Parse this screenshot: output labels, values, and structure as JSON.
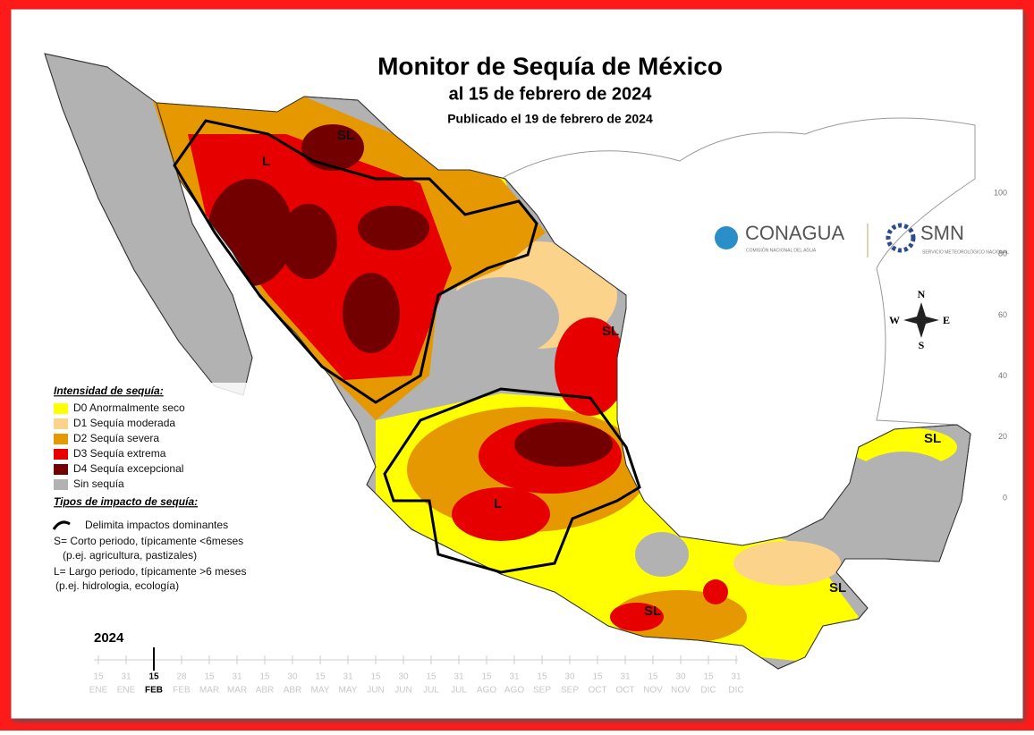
{
  "header": {
    "title": "Monitor de Sequía de México",
    "subtitle": "al 15 de febrero de 2024",
    "published": "Publicado el 19 de febrero de 2024"
  },
  "legend": {
    "title": "Intensidad de sequía:",
    "items": [
      {
        "label": "D0 Anormalmente seco",
        "color": "#ffff00"
      },
      {
        "label": "D1 Sequía moderada",
        "color": "#fcd38b"
      },
      {
        "label": "D2 Sequía severa",
        "color": "#e69800"
      },
      {
        "label": "D3 Sequía extrema",
        "color": "#e60000"
      },
      {
        "label": "D4 Sequía excepcional",
        "color": "#730000"
      },
      {
        "label": "Sin sequía",
        "color": "#b2b2b2"
      }
    ]
  },
  "impacts": {
    "title": "Tipos de impacto de sequía:",
    "items": [
      "Delimita impactos dominantes",
      "S= Corto periodo, típicamente <6meses",
      "(p.ej. agricultura, pastizales)",
      "L= Largo periodo, típicamente >6 meses",
      "(p.ej. hidrologia, ecología)"
    ]
  },
  "map_labels": [
    "SL",
    "L",
    "SL",
    "SL",
    "L",
    "SL",
    "SL"
  ],
  "logos": {
    "conagua": "CONAGUA",
    "conagua_sub": "COMISIÓN NACIONAL DEL AGUA",
    "smn": "SMN",
    "smn_sub": "SERVICIO METEOROLÓGICO NACIONAL"
  },
  "compass": {
    "n": "N",
    "s": "S",
    "e": "E",
    "w": "W"
  },
  "side_axis": [
    100,
    80,
    60,
    40,
    20,
    0
  ],
  "timeline": {
    "year": "2024",
    "current": 2,
    "ticks": [
      {
        "day": 15,
        "month": "ENE"
      },
      {
        "day": 31,
        "month": "ENE"
      },
      {
        "day": 15,
        "month": "FEB"
      },
      {
        "day": 28,
        "month": "FEB"
      },
      {
        "day": 15,
        "month": "MAR"
      },
      {
        "day": 31,
        "month": "MAR"
      },
      {
        "day": 15,
        "month": "ABR"
      },
      {
        "day": 30,
        "month": "ABR"
      },
      {
        "day": 15,
        "month": "MAY"
      },
      {
        "day": 31,
        "month": "MAY"
      },
      {
        "day": 15,
        "month": "JUN"
      },
      {
        "day": 30,
        "month": "JUN"
      },
      {
        "day": 15,
        "month": "JUL"
      },
      {
        "day": 31,
        "month": "JUL"
      },
      {
        "day": 15,
        "month": "AGO"
      },
      {
        "day": 31,
        "month": "AGO"
      },
      {
        "day": 15,
        "month": "SEP"
      },
      {
        "day": 30,
        "month": "SEP"
      },
      {
        "day": 15,
        "month": "OCT"
      },
      {
        "day": 31,
        "month": "OCT"
      },
      {
        "day": 15,
        "month": "NOV"
      },
      {
        "day": 30,
        "month": "NOV"
      },
      {
        "day": 15,
        "month": "DIC"
      },
      {
        "day": 31,
        "month": "DIC"
      }
    ]
  }
}
